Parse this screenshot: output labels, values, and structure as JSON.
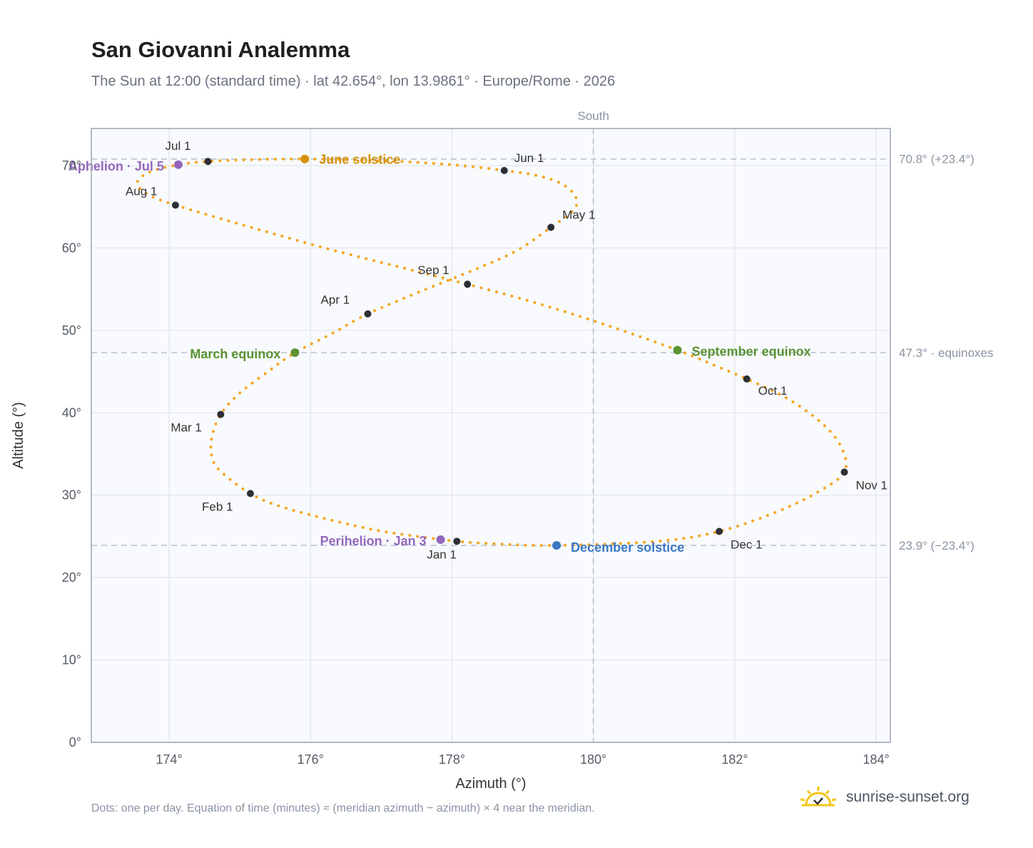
{
  "header": {
    "title": "San Giovanni Analemma",
    "subtitle": "The Sun at 12:00 (standard time) · lat 42.654°, lon 13.9861° · Europe/Rome · 2026"
  },
  "footnote": "Dots: one per day. Equation of time (minutes) ≈ (meridian azimuth − azimuth) × 4 near the meridian.",
  "brand": {
    "name": "sunrise-sunset.org",
    "icon": "sun-logo-icon",
    "color": "#f5c518"
  },
  "colors": {
    "curve": "#f5a623",
    "month_dot": "#2d2f36",
    "solstice_june": "#d4900a",
    "solstice_december": "#3b78c4",
    "equinox": "#5a9234",
    "apsis": "#9467bd",
    "plot_bg": "#f8fafd",
    "grid": "#e6e9ee",
    "ref_line": "#b5c3cf"
  },
  "chart_data": {
    "type": "scatter",
    "title": "San Giovanni Analemma",
    "subtitle": "The Sun at 12:00 (standard time) · lat 42.654°, lon 13.9861° · Europe/Rome · 2026",
    "xlabel": "Azimuth (°)",
    "ylabel": "Altitude (°)",
    "xlim": [
      172.9,
      184.2
    ],
    "ylim": [
      0,
      74.5
    ],
    "grid": true,
    "x_ticks": [
      174,
      176,
      178,
      180,
      182,
      184
    ],
    "x_tick_labels": [
      "174°",
      "176°",
      "178°",
      "180°",
      "182°",
      "184°"
    ],
    "y_ticks": [
      0,
      10,
      20,
      30,
      40,
      50,
      60,
      70
    ],
    "y_tick_labels": [
      "0°",
      "10°",
      "20°",
      "30°",
      "40°",
      "50°",
      "60°",
      "70°"
    ],
    "meridian": {
      "x": 180,
      "label": "South"
    },
    "reference_lines": [
      {
        "y": 70.8,
        "label": "70.8° (+23.4°)"
      },
      {
        "y": 47.3,
        "label": "47.3° · equinoxes"
      },
      {
        "y": 23.9,
        "label": "23.9° (−23.4°)"
      }
    ],
    "month_points": [
      {
        "label": "Jan 1",
        "x": 178.07,
        "y": 24.4
      },
      {
        "label": "Feb 1",
        "x": 175.15,
        "y": 30.2
      },
      {
        "label": "Mar 1",
        "x": 174.73,
        "y": 39.8
      },
      {
        "label": "Apr 1",
        "x": 176.81,
        "y": 52.0
      },
      {
        "label": "May 1",
        "x": 179.4,
        "y": 62.5
      },
      {
        "label": "Jun 1",
        "x": 178.74,
        "y": 69.4
      },
      {
        "label": "Jul 1",
        "x": 174.55,
        "y": 70.5
      },
      {
        "label": "Aug 1",
        "x": 174.09,
        "y": 65.2
      },
      {
        "label": "Sep 1",
        "x": 178.22,
        "y": 55.6
      },
      {
        "label": "Oct 1",
        "x": 182.17,
        "y": 44.1
      },
      {
        "label": "Nov 1",
        "x": 183.55,
        "y": 32.8
      },
      {
        "label": "Dec 1",
        "x": 181.78,
        "y": 25.6
      }
    ],
    "events": [
      {
        "label": "June solstice",
        "x": 175.92,
        "y": 70.8,
        "kind": "solstice_june"
      },
      {
        "label": "December solstice",
        "x": 179.48,
        "y": 23.9,
        "kind": "solstice_december"
      },
      {
        "label": "March equinox",
        "x": 175.78,
        "y": 47.3,
        "kind": "equinox"
      },
      {
        "label": "September equinox",
        "x": 181.19,
        "y": 47.6,
        "kind": "equinox"
      },
      {
        "label": "Aphelion · Jul 5",
        "x": 174.13,
        "y": 70.1,
        "kind": "apsis"
      },
      {
        "label": "Perihelion · Jan 3",
        "x": 177.84,
        "y": 24.6,
        "kind": "apsis"
      }
    ],
    "curve": {
      "description_points": "daily positions; one per day",
      "x": [
        178.07,
        177.6,
        176.9,
        176.0,
        175.45,
        175.15,
        174.85,
        174.63,
        174.6,
        174.73,
        175.0,
        175.4,
        175.78,
        176.3,
        176.81,
        177.55,
        178.3,
        178.9,
        179.4,
        179.72,
        179.75,
        179.55,
        179.2,
        178.74,
        178.0,
        177.0,
        175.92,
        175.1,
        174.55,
        174.13,
        173.72,
        173.55,
        173.7,
        174.09,
        175.0,
        176.2,
        177.3,
        178.22,
        179.2,
        180.2,
        181.19,
        181.7,
        182.17,
        182.75,
        183.25,
        183.52,
        183.55,
        183.2,
        182.6,
        181.78,
        180.9,
        179.48,
        178.6,
        178.07
      ],
      "y": [
        24.4,
        24.9,
        25.8,
        27.6,
        29.0,
        30.2,
        32.0,
        34.0,
        36.8,
        39.8,
        42.4,
        45.0,
        47.3,
        49.6,
        52.0,
        54.7,
        57.3,
        59.6,
        62.5,
        64.6,
        66.2,
        67.8,
        68.8,
        69.4,
        70.1,
        70.6,
        70.8,
        70.7,
        70.5,
        70.1,
        69.2,
        67.9,
        66.5,
        65.2,
        62.9,
        60.0,
        57.6,
        55.6,
        53.3,
        50.6,
        47.6,
        45.8,
        44.1,
        41.7,
        38.6,
        35.6,
        32.8,
        30.5,
        28.0,
        25.6,
        24.4,
        23.9,
        24.1,
        24.4
      ]
    }
  }
}
